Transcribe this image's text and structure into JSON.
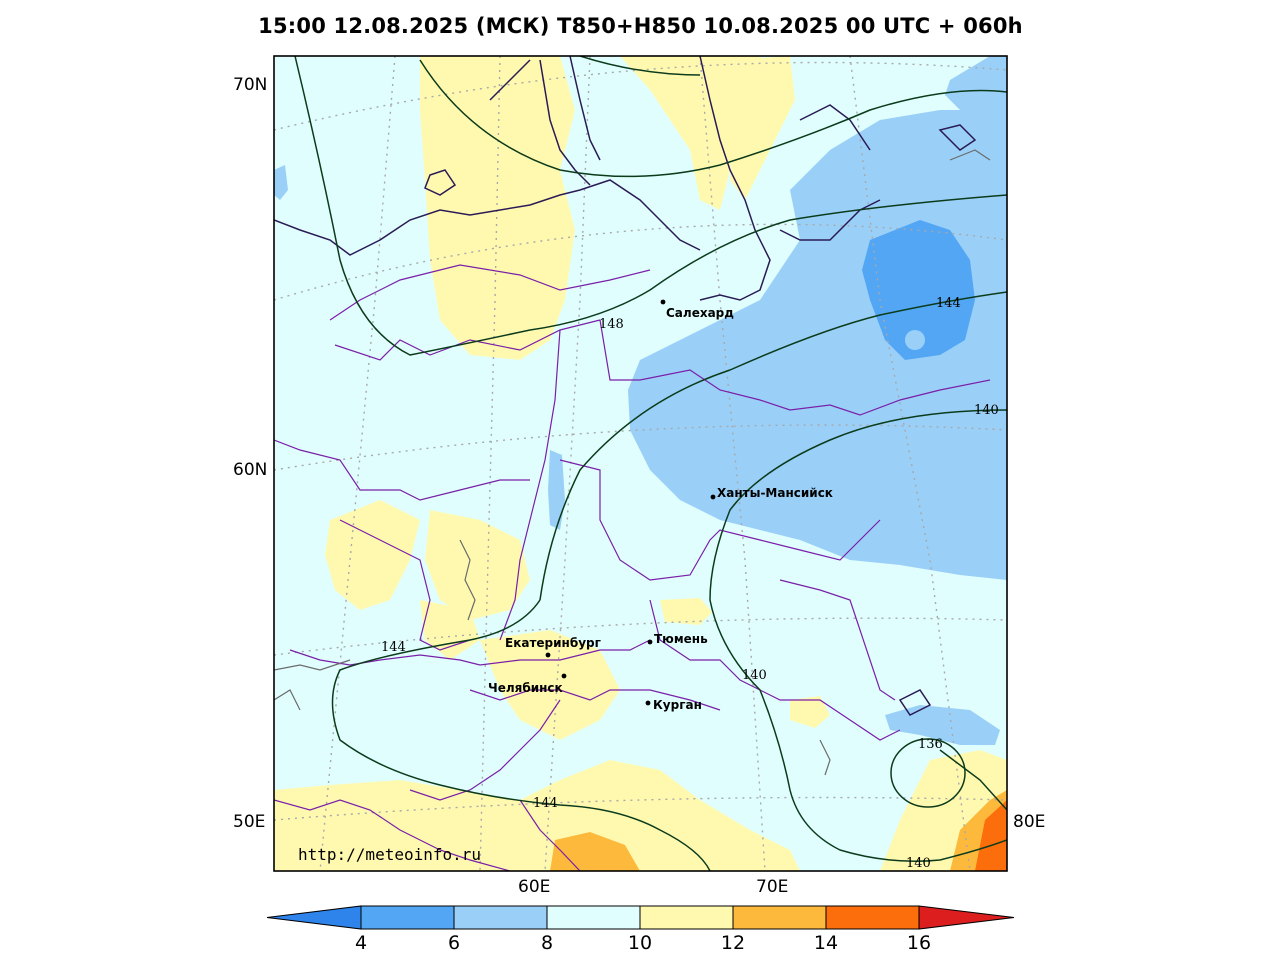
{
  "title": "15:00 12.08.2025 (МСК) T850+H850 10.08.2025 00 UTC + 060h",
  "credit": "http://meteoinfo.ru",
  "lat_labels": [
    "70N",
    "60N",
    "50E"
  ],
  "lon_labels": [
    "60E",
    "70E",
    "80E"
  ],
  "cities": [
    {
      "name": "Салехард"
    },
    {
      "name": "Ханты-Мансийск"
    },
    {
      "name": "Екатеринбург"
    },
    {
      "name": "Тюмень"
    },
    {
      "name": "Челябинск"
    },
    {
      "name": "Курган"
    }
  ],
  "contour_labels": [
    "148",
    "144",
    "140",
    "144",
    "140",
    "144",
    "140",
    "136"
  ],
  "colorbar": {
    "ticks": [
      "4",
      "6",
      "8",
      "10",
      "12",
      "14",
      "16"
    ],
    "colors": [
      "#2f84ec",
      "#53a6f3",
      "#9ad0f8",
      "#e0fefe",
      "#fff9b0",
      "#fdb93b",
      "#fc6d0b",
      "#dc1e1e"
    ]
  },
  "colors": {
    "t_8_10": "#9ad0f8",
    "t_6_8": "#53a6f3",
    "t_10_12": "#e0fefe",
    "t_12_14": "#fff9b0",
    "t_14_16": "#fdb93b",
    "t_16_18": "#fc6d0b",
    "contour": "#0b3b1b",
    "borders": "#7a1fa8",
    "coast": "#2b1b55"
  }
}
